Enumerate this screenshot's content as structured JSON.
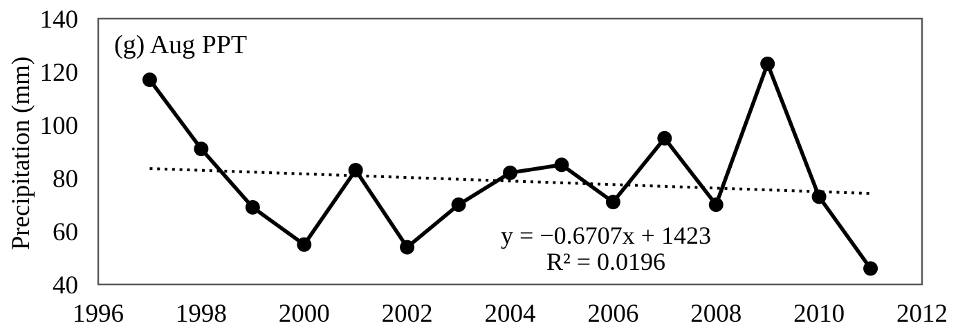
{
  "figure": {
    "panel_label": "(g) Aug PPT"
  },
  "chart_data": {
    "type": "line",
    "title": "(g) Aug PPT",
    "x": [
      1997,
      1998,
      1999,
      2000,
      2001,
      2002,
      2003,
      2004,
      2005,
      2006,
      2007,
      2008,
      2009,
      2010,
      2011
    ],
    "series": [
      {
        "name": "August precipitation",
        "values": [
          117,
          91,
          69,
          55,
          83,
          54,
          70,
          82,
          85,
          71,
          95,
          70,
          123,
          73,
          46
        ]
      }
    ],
    "trendline": {
      "kind": "linear",
      "slope": -0.6707,
      "intercept": 1423,
      "r_squared": 0.0196,
      "equation_label": "y = −0.6707x + 1423",
      "r_squared_label": "R² = 0.0196",
      "x_start": 1997,
      "x_end": 2011
    },
    "xlabel": "",
    "ylabel": "Precipitation (mm)",
    "xlim": [
      1996,
      2012
    ],
    "ylim": [
      40,
      140
    ],
    "x_ticks": [
      1996,
      1998,
      2000,
      2002,
      2004,
      2006,
      2008,
      2010,
      2012
    ],
    "y_ticks": [
      40,
      60,
      80,
      100,
      120,
      140
    ],
    "grid": false,
    "legend": false,
    "colors": {
      "series": "#000000",
      "marker": "#000000",
      "trendline": "#000000",
      "text": "#000000",
      "plot_border": "#595959",
      "background": "#ffffff"
    }
  }
}
